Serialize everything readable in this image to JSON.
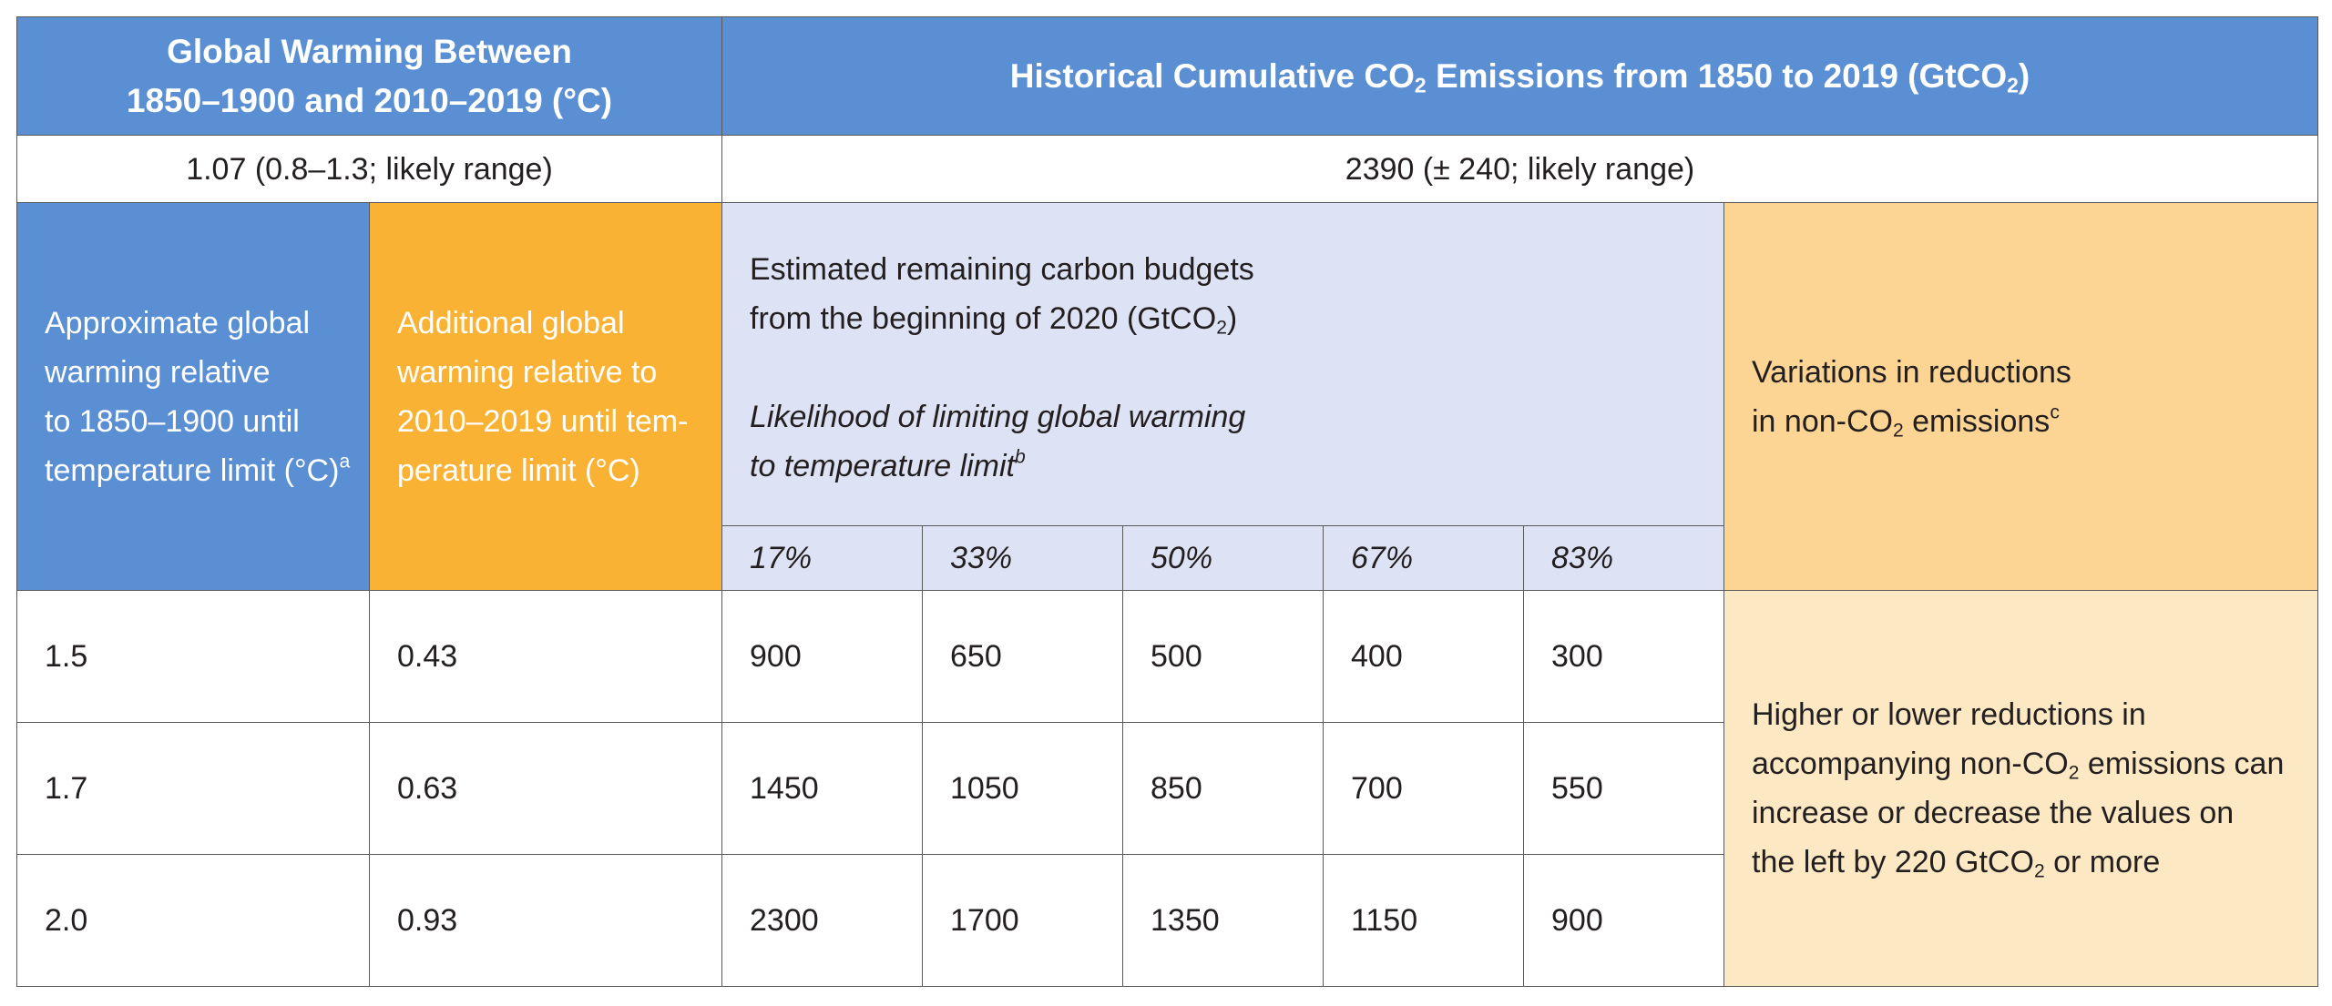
{
  "header": {
    "warming_title_line1": "Global Warming Between",
    "warming_title_line2": "1850–1900 and 2010–2019 (°C)",
    "emissions_title_pre": "Historical Cumulative CO",
    "emissions_title_sub1": "2",
    "emissions_title_mid": " Emissions from 1850 to 2019 (GtCO",
    "emissions_title_sub2": "2",
    "emissions_title_post": ")"
  },
  "ranges": {
    "warming": "1.07 (0.8–1.3; likely range)",
    "emissions": "2390 (± 240; likely range)"
  },
  "columns": {
    "approx_lines": [
      "Approximate global",
      "warming relative",
      "to 1850–1900 until"
    ],
    "approx_last": "temperature limit (°C)",
    "approx_sup": "a",
    "additional_lines": [
      "Additional global",
      "warming relative to",
      "2010–2019 until tem-",
      "perature limit (°C)"
    ],
    "budget_line1": "Estimated remaining carbon budgets",
    "budget_line2_pre": "from the beginning of 2020 (GtCO",
    "budget_line2_sub": "2",
    "budget_line2_post": ")",
    "likelihood_line1": "Likelihood of limiting global warming",
    "likelihood_line2": "to temperature limit",
    "likelihood_sup": "b",
    "variations_line1": "Variations in reductions",
    "variations_line2_pre": "in non-CO",
    "variations_line2_sub": "2",
    "variations_line2_post": " emissions",
    "variations_sup": "c"
  },
  "percentiles": [
    "17%",
    "33%",
    "50%",
    "67%",
    "83%"
  ],
  "rows": [
    {
      "approx": "1.5",
      "additional": "0.43",
      "budgets": [
        "900",
        "650",
        "500",
        "400",
        "300"
      ]
    },
    {
      "approx": "1.7",
      "additional": "0.63",
      "budgets": [
        "1450",
        "1050",
        "850",
        "700",
        "550"
      ]
    },
    {
      "approx": "2.0",
      "additional": "0.93",
      "budgets": [
        "2300",
        "1700",
        "1350",
        "1150",
        "900"
      ]
    }
  ],
  "note": {
    "line1": "Higher or lower reductions in",
    "line2_pre": "accompanying non-CO",
    "line2_sub": "2",
    "line2_post": " emissions can",
    "line3": "increase or decrease the values on",
    "line4_pre": "the left by 220 GtCO",
    "line4_sub": "2",
    "line4_post": " or more"
  },
  "colors": {
    "header_blue": "#5b8fd4",
    "orange": "#f9b233",
    "lavender": "#dde3f4",
    "peach": "#fcd494",
    "light_peach": "#fde8c4"
  }
}
